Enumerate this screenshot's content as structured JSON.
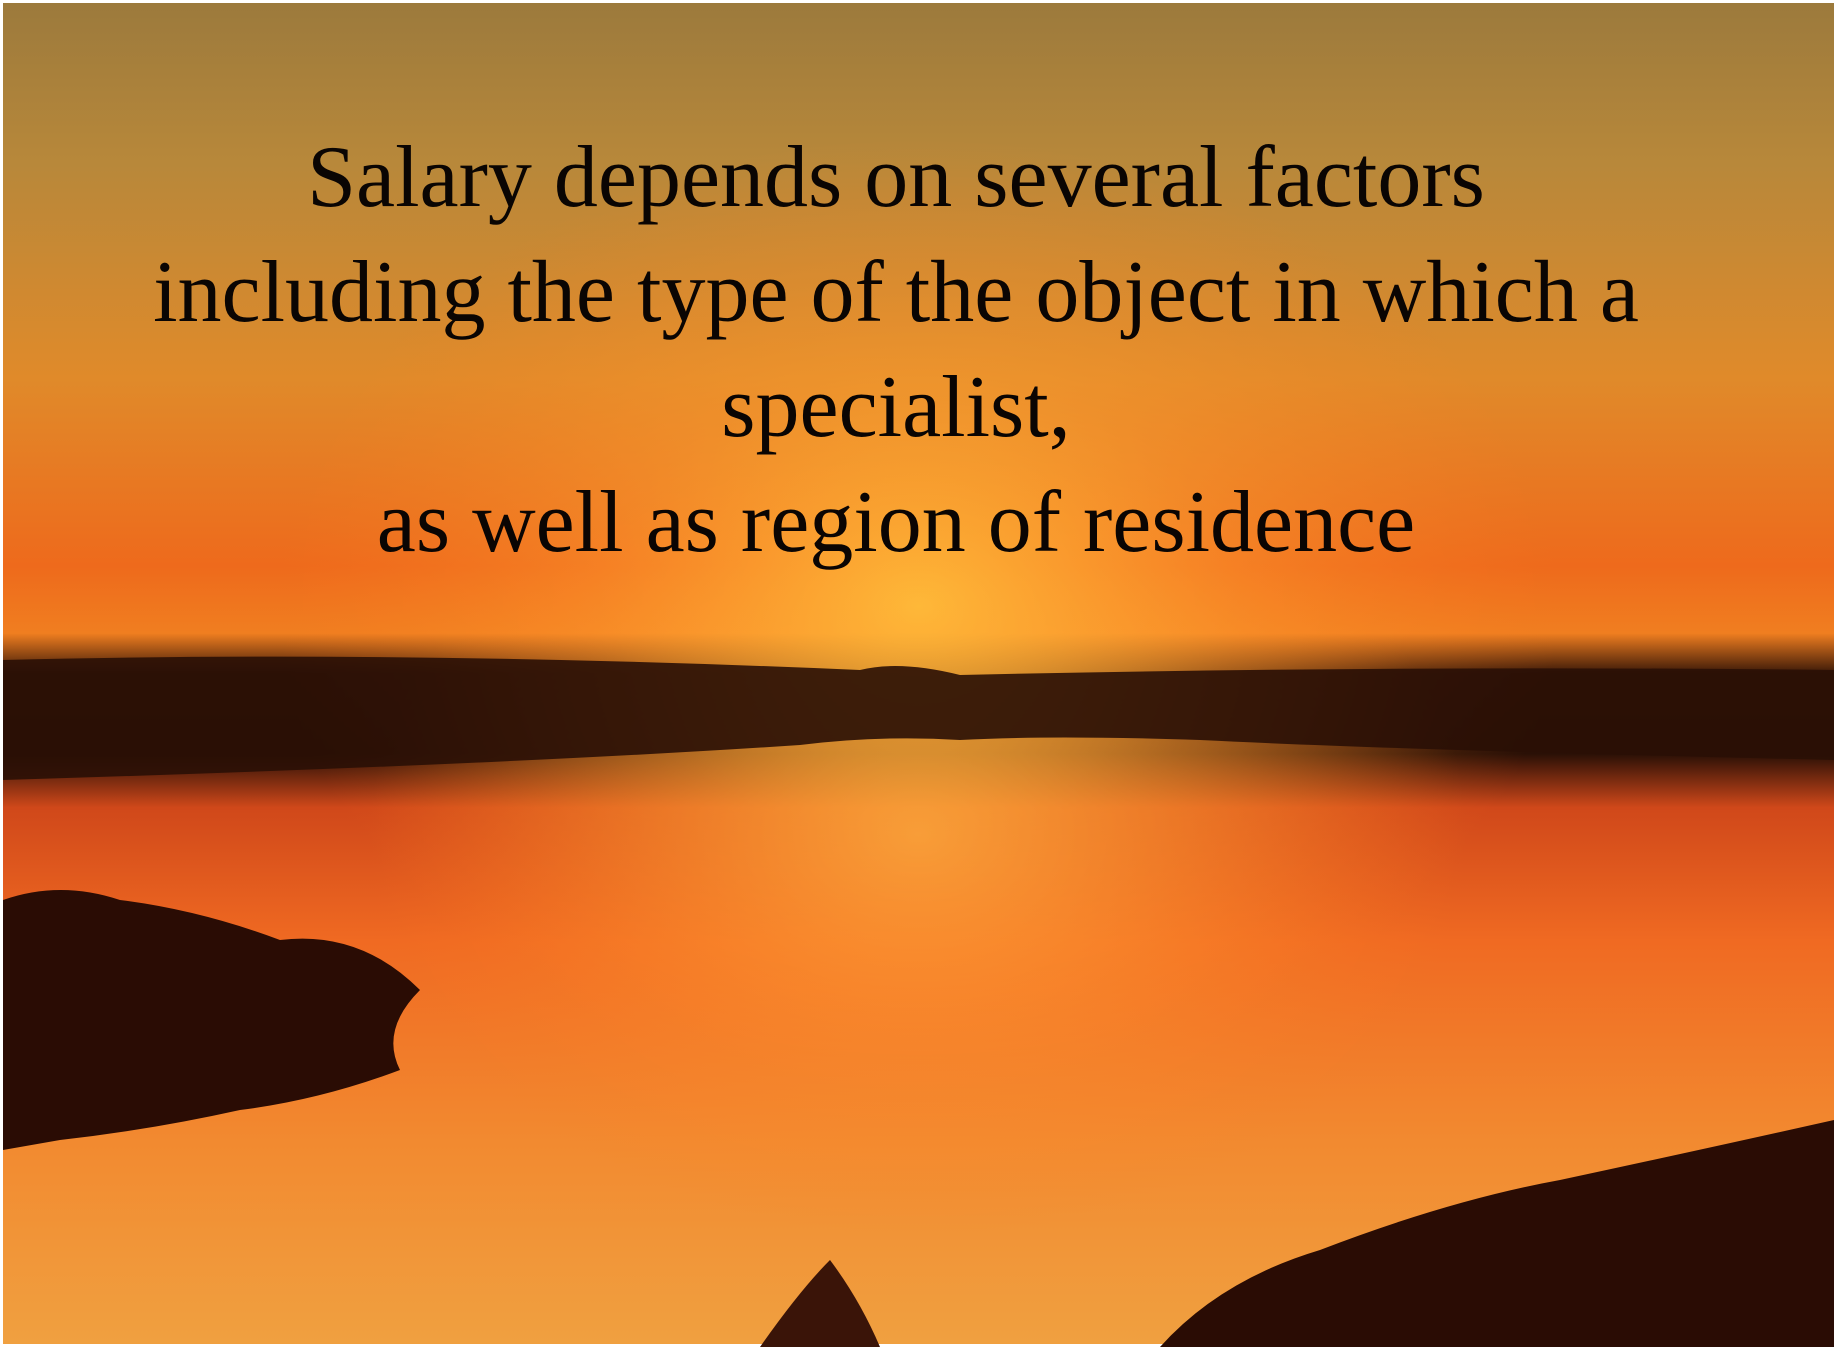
{
  "text": {
    "lines": [
      "Salary depends on several factors",
      "including the type of the object in which a",
      "specialist,",
      "as well as region of residence"
    ]
  }
}
